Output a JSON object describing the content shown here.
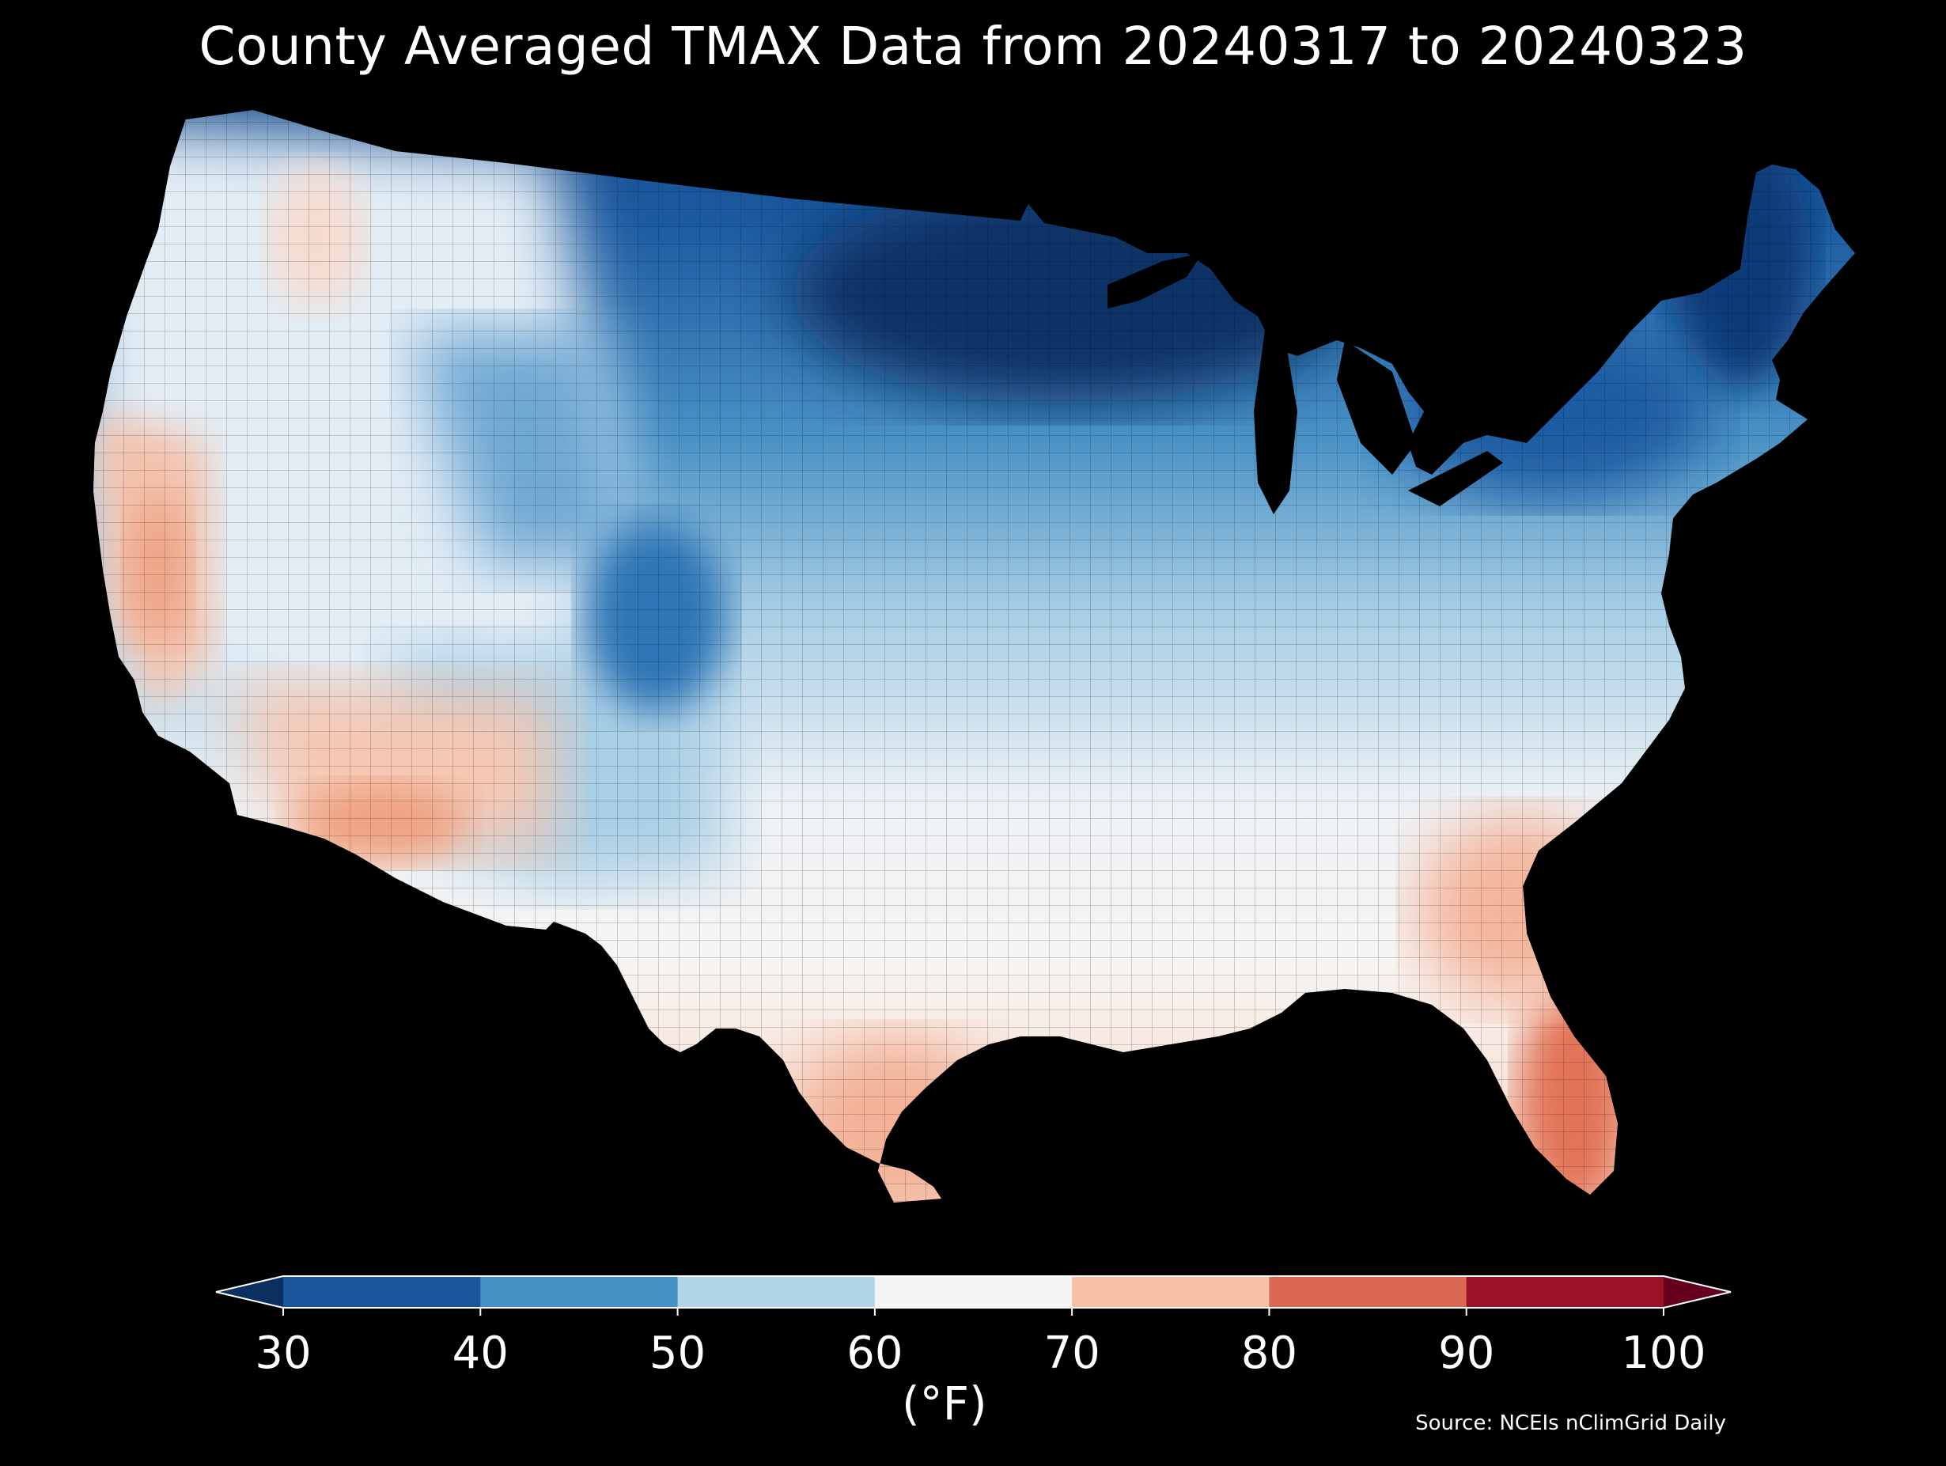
{
  "title": "County Averaged TMAX Data from 20240317 to 20240323",
  "colorbar": {
    "ticks": [
      "30",
      "40",
      "50",
      "60",
      "70",
      "80",
      "90",
      "100"
    ],
    "unit_label": "(°F)",
    "min": 30,
    "max": 100,
    "step": 10,
    "extend": "both",
    "colors": [
      "#1a5599",
      "#4592c5",
      "#b3d5e8",
      "#f5f5f5",
      "#f8c0a4",
      "#da6751",
      "#9b1127"
    ],
    "under_color": "#0a2f60",
    "over_color": "#67001f"
  },
  "source": "Source: NCEIs nClimGrid Daily",
  "regions": [
    {
      "name": "Maine / northern New England",
      "tmax_band": "30-40"
    },
    {
      "name": "Upper Midwest / Great Lakes",
      "tmax_band": "30-40"
    },
    {
      "name": "Colorado Rockies",
      "tmax_band": "30-40"
    },
    {
      "name": "Central Plains / Ohio Valley",
      "tmax_band": "40-60"
    },
    {
      "name": "Pacific Northwest / Great Basin",
      "tmax_band": "50-70"
    },
    {
      "name": "Southern Plains / Southeast",
      "tmax_band": "60-80"
    },
    {
      "name": "Desert Southwest / California",
      "tmax_band": "70-80"
    },
    {
      "name": "South Texas / Florida",
      "tmax_band": "70-90"
    }
  ]
}
